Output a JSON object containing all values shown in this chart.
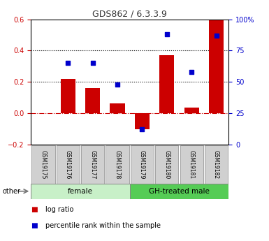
{
  "title": "GDS862 / 6.3.3.9",
  "samples": [
    "GSM19175",
    "GSM19176",
    "GSM19177",
    "GSM19178",
    "GSM19179",
    "GSM19180",
    "GSM19181",
    "GSM19182"
  ],
  "log_ratio": [
    0.0,
    0.22,
    0.16,
    0.065,
    -0.1,
    0.37,
    0.035,
    0.6
  ],
  "percentile_rank": [
    null,
    65,
    65,
    48,
    12,
    88,
    58,
    87
  ],
  "groups": [
    {
      "label": "female",
      "start": 0,
      "end": 4,
      "color": "#c8f0c8"
    },
    {
      "label": "GH-treated male",
      "start": 4,
      "end": 8,
      "color": "#55cc55"
    }
  ],
  "bar_color": "#cc0000",
  "dot_color": "#0000cc",
  "ylim_left": [
    -0.2,
    0.6
  ],
  "ylim_right": [
    0,
    100
  ],
  "yticks_left": [
    -0.2,
    0.0,
    0.2,
    0.4,
    0.6
  ],
  "yticks_right": [
    0,
    25,
    50,
    75,
    100
  ],
  "hline_zero_color": "#cc0000",
  "hline_dotted_color": "#000000",
  "background_color": "#ffffff",
  "legend_items": [
    "log ratio",
    "percentile rank within the sample"
  ],
  "other_label": "other",
  "sample_box_color": "#d0d0d0",
  "sample_box_edge": "#999999"
}
